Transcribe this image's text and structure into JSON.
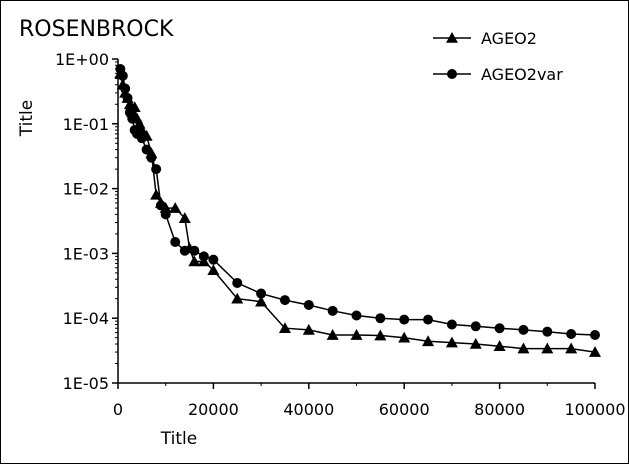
{
  "chart_data": {
    "type": "line",
    "title": "ROSENBROCK",
    "xlabel": "Title",
    "ylabel": "Title",
    "xlim": [
      0,
      100000
    ],
    "ylim": [
      1e-05,
      1
    ],
    "yscale": "log",
    "grid": false,
    "legend_position": "top-right",
    "x_ticks": [
      0,
      20000,
      40000,
      60000,
      80000,
      100000
    ],
    "x_tick_labels": [
      "0",
      "20000",
      "40000",
      "60000",
      "80000",
      "100000"
    ],
    "y_ticks": [
      1,
      0.1,
      0.01,
      0.001,
      0.0001,
      1e-05
    ],
    "y_tick_labels": [
      "1E+00",
      "1E-01",
      "1E-02",
      "1E-03",
      "1E-04",
      "1E-05"
    ],
    "series": [
      {
        "name": "AGEO2",
        "marker": "triangle",
        "color": "#000000",
        "x": [
          500,
          1000,
          1500,
          2000,
          2500,
          3000,
          3500,
          4000,
          4500,
          5000,
          6000,
          7000,
          8000,
          9000,
          10000,
          12000,
          14000,
          15000,
          16000,
          18000,
          20000,
          25000,
          30000,
          35000,
          40000,
          45000,
          50000,
          55000,
          60000,
          65000,
          70000,
          75000,
          80000,
          85000,
          90000,
          95000,
          100000
        ],
        "y": [
          0.6,
          0.4,
          0.3,
          0.25,
          0.2,
          0.15,
          0.18,
          0.12,
          0.1,
          0.08,
          0.065,
          0.035,
          0.008,
          0.006,
          0.005,
          0.005,
          0.0035,
          0.0012,
          0.00075,
          0.00075,
          0.00055,
          0.0002,
          0.00018,
          7e-05,
          6.6e-05,
          5.5e-05,
          5.5e-05,
          5.4e-05,
          5e-05,
          4.4e-05,
          4.2e-05,
          4e-05,
          3.7e-05,
          3.4e-05,
          3.4e-05,
          3.4e-05,
          3e-05
        ]
      },
      {
        "name": "AGEO2var",
        "marker": "circle",
        "color": "#000000",
        "x": [
          500,
          1000,
          1500,
          2000,
          2500,
          3000,
          3500,
          4000,
          4500,
          5000,
          6000,
          7000,
          8000,
          9000,
          10000,
          12000,
          14000,
          16000,
          18000,
          20000,
          25000,
          30000,
          35000,
          40000,
          45000,
          50000,
          55000,
          60000,
          65000,
          70000,
          75000,
          80000,
          85000,
          90000,
          95000,
          100000
        ],
        "y": [
          0.7,
          0.55,
          0.35,
          0.25,
          0.15,
          0.12,
          0.08,
          0.07,
          0.075,
          0.06,
          0.04,
          0.03,
          0.02,
          0.0055,
          0.004,
          0.0015,
          0.0011,
          0.0011,
          0.0009,
          0.0008,
          0.00035,
          0.00024,
          0.00019,
          0.00016,
          0.00013,
          0.00011,
          0.0001,
          9.5e-05,
          9.5e-05,
          8e-05,
          7.5e-05,
          7e-05,
          6.6e-05,
          6.2e-05,
          5.7e-05,
          5.5e-05
        ]
      }
    ]
  }
}
